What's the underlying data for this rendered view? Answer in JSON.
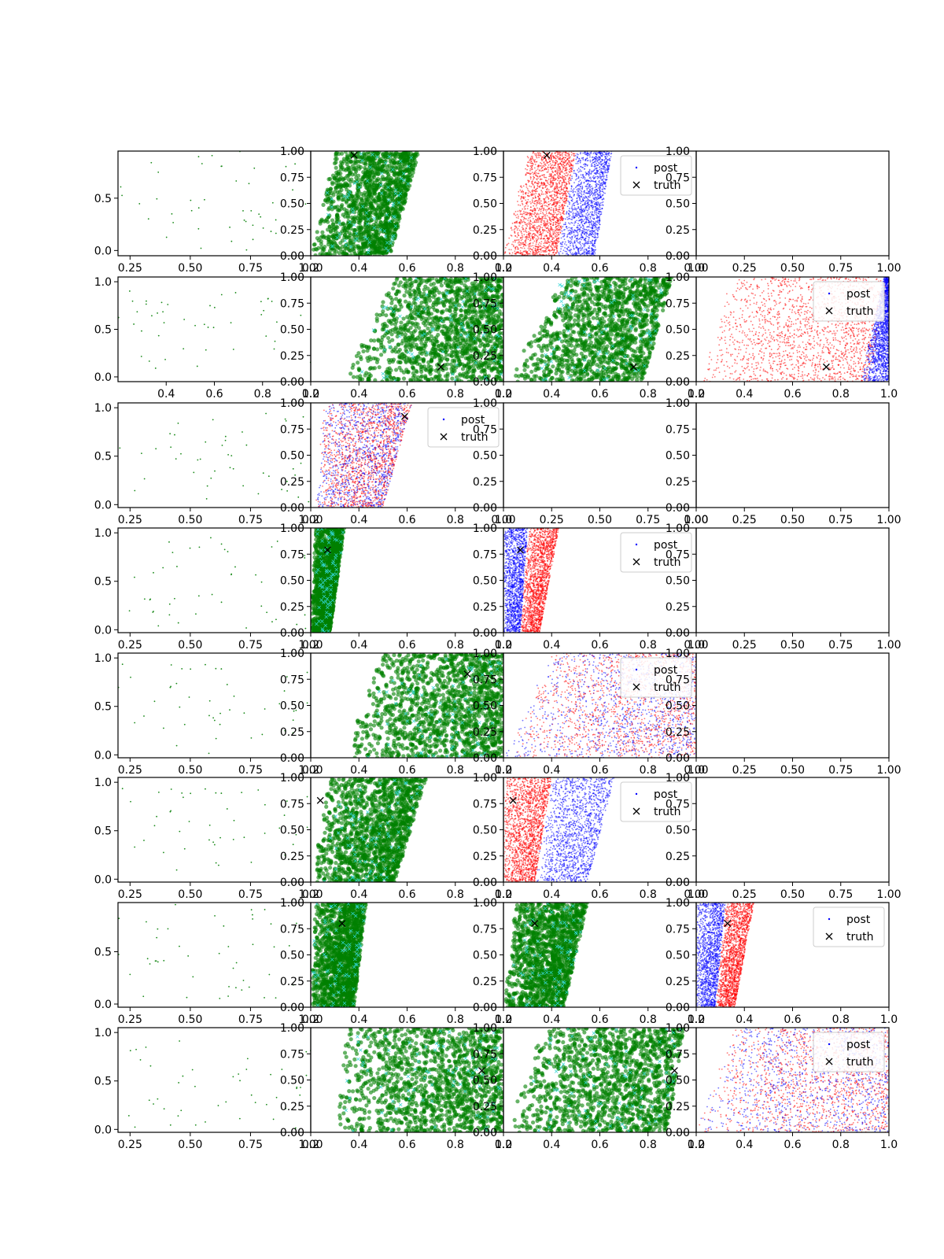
{
  "legend": {
    "post_label": "post",
    "truth_label": "truth"
  },
  "colors": {
    "scatter_green": "#1a8a1a",
    "posterior_green": "#008000",
    "posterior_red": "#ff0000",
    "posterior_blue": "#0000ff",
    "truth_marker": "#000000",
    "cyan_overlay": "#33d6d6"
  },
  "chart_data": [
    {
      "row": 0,
      "col": 0,
      "type": "scatter",
      "style": "sparse",
      "xlim": [
        0.2,
        1.0
      ],
      "ylim": [
        -0.05,
        0.95
      ],
      "xticks": [
        "0.25",
        "0.50",
        "0.75",
        "1.00"
      ],
      "yticks": [
        "0.0",
        "0.5"
      ],
      "yticks_values": [
        0.0,
        0.5
      ]
    },
    {
      "row": 0,
      "col": 1,
      "type": "scatter",
      "style": "green",
      "xlim": [
        0.2,
        1.0
      ],
      "ylim": [
        0,
        1
      ],
      "xticks": [
        "0.2",
        "0.4",
        "0.6",
        "0.8",
        "1.0"
      ],
      "yticks": [
        "0.00",
        "0.25",
        "0.50",
        "0.75",
        "1.00"
      ],
      "region": {
        "xmin_at_y0": 0.2,
        "xmax_at_y0": 0.53,
        "xmin_at_y1": 0.3,
        "xmax_at_y1": 0.65
      },
      "truth": [
        0.38,
        0.96
      ]
    },
    {
      "row": 0,
      "col": 2,
      "type": "scatter",
      "style": "redblue",
      "xlim": [
        0.2,
        1.0
      ],
      "ylim": [
        0,
        1
      ],
      "xticks": [
        "0.2",
        "0.4",
        "0.6",
        "0.8",
        "1.0"
      ],
      "yticks": [
        "0.00",
        "0.25",
        "0.50",
        "0.75",
        "1.00"
      ],
      "region": {
        "xmin_at_y0": 0.2,
        "xmax_at_y0": 0.42,
        "xmin_at_y1": 0.3,
        "xmax_at_y1": 0.5
      },
      "blue_region": {
        "xmin_at_y0": 0.42,
        "xmax_at_y0": 0.58,
        "xmin_at_y1": 0.5,
        "xmax_at_y1": 0.65
      },
      "truth": [
        0.38,
        0.96
      ],
      "legend": true
    },
    {
      "row": 0,
      "col": 3,
      "type": "empty",
      "xlim": [
        0,
        1
      ],
      "ylim": [
        0,
        1
      ],
      "xticks": [
        "0.00",
        "0.25",
        "0.50",
        "0.75",
        "1.00"
      ],
      "yticks": [
        "0.00",
        "0.25",
        "0.50",
        "0.75",
        "1.00"
      ]
    },
    {
      "row": 1,
      "col": 0,
      "type": "scatter",
      "style": "sparse",
      "xlim": [
        0.2,
        1.0
      ],
      "ylim": [
        -0.05,
        1.05
      ],
      "xticks": [
        "0.4",
        "0.6",
        "0.8",
        "1.0"
      ],
      "yticks": [
        "0.0",
        "0.5",
        "1.0"
      ],
      "yticks_values": [
        0.0,
        0.5,
        1.0
      ]
    },
    {
      "row": 1,
      "col": 1,
      "type": "scatter",
      "style": "green",
      "xlim": [
        0.2,
        1.0
      ],
      "ylim": [
        0,
        1
      ],
      "xticks": [
        "0.2",
        "0.4",
        "0.6",
        "0.8",
        "1.0"
      ],
      "yticks": [
        "0.00",
        "0.25",
        "0.50",
        "0.75",
        "1.00"
      ],
      "region": {
        "xmin_at_y0": 0.33,
        "xmax_at_y0": 1.0,
        "xmin_at_y1": 0.55,
        "xmax_at_y1": 1.0
      },
      "truth": [
        0.74,
        0.14
      ]
    },
    {
      "row": 1,
      "col": 2,
      "type": "scatter",
      "style": "green",
      "xlim": [
        0.2,
        1.0
      ],
      "ylim": [
        0,
        1
      ],
      "xticks": [
        "0.2",
        "0.4",
        "0.6",
        "0.8",
        "1.0"
      ],
      "yticks": [
        "0.00",
        "0.25",
        "0.50",
        "0.75",
        "1.00"
      ],
      "region": {
        "xmin_at_y0": 0.22,
        "xmax_at_y0": 0.78,
        "xmin_at_y1": 0.44,
        "xmax_at_y1": 0.9
      },
      "truth": [
        0.74,
        0.14
      ]
    },
    {
      "row": 1,
      "col": 3,
      "type": "scatter",
      "style": "redblue",
      "xlim": [
        0.2,
        1.0
      ],
      "ylim": [
        0,
        1
      ],
      "xticks": [
        "0.2",
        "0.4",
        "0.6",
        "0.8",
        "1.0"
      ],
      "yticks": [
        "0.00",
        "0.25",
        "0.50",
        "0.75",
        "1.00"
      ],
      "region": {
        "xmin_at_y0": 0.2,
        "xmax_at_y0": 0.92,
        "xmin_at_y1": 0.35,
        "xmax_at_y1": 1.0
      },
      "blue_region": {
        "xmin_at_y0": 0.88,
        "xmax_at_y0": 1.0,
        "xmin_at_y1": 0.98,
        "xmax_at_y1": 1.0
      },
      "truth": [
        0.74,
        0.14
      ],
      "legend": true
    },
    {
      "row": 2,
      "col": 0,
      "type": "scatter",
      "style": "sparse",
      "xlim": [
        0.2,
        1.0
      ],
      "ylim": [
        -0.03,
        1.05
      ],
      "xticks": [
        "0.25",
        "0.50",
        "0.75",
        "1.00"
      ],
      "yticks": [
        "0.0",
        "0.5",
        "1.0"
      ],
      "yticks_values": [
        0.0,
        0.5,
        1.0
      ]
    },
    {
      "row": 2,
      "col": 1,
      "type": "scatter",
      "style": "redblue_mixed",
      "xlim": [
        0.2,
        1.0
      ],
      "ylim": [
        0,
        1
      ],
      "xticks": [
        "0.2",
        "0.4",
        "0.6",
        "0.8",
        "1.0"
      ],
      "yticks": [
        "0.00",
        "0.25",
        "0.50",
        "0.75",
        "1.00"
      ],
      "region": {
        "xmin_at_y0": 0.22,
        "xmax_at_y0": 0.5,
        "xmin_at_y1": 0.25,
        "xmax_at_y1": 0.62
      },
      "truth": [
        0.59,
        0.87
      ],
      "legend": true
    },
    {
      "row": 2,
      "col": 2,
      "type": "empty",
      "xlim": [
        0,
        1
      ],
      "ylim": [
        0,
        1
      ],
      "xticks": [
        "0.00",
        "0.25",
        "0.50",
        "0.75",
        "1.00"
      ],
      "yticks": [
        "0.00",
        "0.25",
        "0.50",
        "0.75",
        "1.00"
      ]
    },
    {
      "row": 2,
      "col": 3,
      "type": "empty",
      "xlim": [
        0,
        1
      ],
      "ylim": [
        0,
        1
      ],
      "xticks": [
        "0.00",
        "0.25",
        "0.50",
        "0.75",
        "1.00"
      ],
      "yticks": [
        "0.00",
        "0.25",
        "0.50",
        "0.75",
        "1.00"
      ]
    },
    {
      "row": 3,
      "col": 0,
      "type": "scatter",
      "style": "sparse",
      "xlim": [
        0.2,
        1.0
      ],
      "ylim": [
        -0.03,
        1.05
      ],
      "xticks": [
        "0.25",
        "0.50",
        "0.75",
        "1.00"
      ],
      "yticks": [
        "0.0",
        "0.5",
        "1.0"
      ],
      "yticks_values": [
        0.0,
        0.5,
        1.0
      ]
    },
    {
      "row": 3,
      "col": 1,
      "type": "scatter",
      "style": "green",
      "xlim": [
        0.2,
        1.0
      ],
      "ylim": [
        0,
        1
      ],
      "xticks": [
        "0.2",
        "0.4",
        "0.6",
        "0.8",
        "1.0"
      ],
      "yticks": [
        "0.00",
        "0.25",
        "0.50",
        "0.75",
        "1.00"
      ],
      "region": {
        "xmin_at_y0": 0.2,
        "xmax_at_y0": 0.28,
        "xmin_at_y1": 0.22,
        "xmax_at_y1": 0.34
      },
      "truth": [
        0.27,
        0.79
      ]
    },
    {
      "row": 3,
      "col": 2,
      "type": "scatter",
      "style": "redblue",
      "xlim": [
        0.2,
        1.0
      ],
      "ylim": [
        0,
        1
      ],
      "xticks": [
        "0.2",
        "0.4",
        "0.6",
        "0.8",
        "1.0"
      ],
      "yticks": [
        "0.00",
        "0.25",
        "0.50",
        "0.75",
        "1.00"
      ],
      "region": {
        "xmin_at_y0": 0.27,
        "xmax_at_y0": 0.35,
        "xmin_at_y1": 0.3,
        "xmax_at_y1": 0.43
      },
      "blue_region": {
        "xmin_at_y0": 0.2,
        "xmax_at_y0": 0.27,
        "xmin_at_y1": 0.2,
        "xmax_at_y1": 0.3
      },
      "truth": [
        0.27,
        0.79
      ],
      "legend": true
    },
    {
      "row": 3,
      "col": 3,
      "type": "empty",
      "xlim": [
        0,
        1
      ],
      "ylim": [
        0,
        1
      ],
      "xticks": [
        "0.00",
        "0.25",
        "0.50",
        "0.75",
        "1.00"
      ],
      "yticks": [
        "0.00",
        "0.25",
        "0.50",
        "0.75",
        "1.00"
      ]
    },
    {
      "row": 4,
      "col": 0,
      "type": "scatter",
      "style": "sparse",
      "xlim": [
        0.2,
        1.0
      ],
      "ylim": [
        -0.03,
        1.05
      ],
      "xticks": [
        "0.25",
        "0.50",
        "0.75",
        "1.00"
      ],
      "yticks": [
        "0.0",
        "0.5",
        "1.0"
      ],
      "yticks_values": [
        0.0,
        0.5,
        1.0
      ]
    },
    {
      "row": 4,
      "col": 1,
      "type": "scatter",
      "style": "green",
      "xlim": [
        0.2,
        1.0
      ],
      "ylim": [
        0,
        1
      ],
      "xticks": [
        "0.2",
        "0.4",
        "0.6",
        "0.8",
        "1.0"
      ],
      "yticks": [
        "0.00",
        "0.25",
        "0.50",
        "0.75",
        "1.00"
      ],
      "region": {
        "xmin_at_y0": 0.33,
        "xmax_at_y0": 1.0,
        "xmin_at_y1": 0.5,
        "xmax_at_y1": 1.0
      },
      "truth": [
        0.85,
        0.8
      ]
    },
    {
      "row": 4,
      "col": 2,
      "type": "scatter",
      "style": "redblue_mixed",
      "xlim": [
        0.2,
        1.0
      ],
      "ylim": [
        0,
        1
      ],
      "xticks": [
        "0.2",
        "0.4",
        "0.6",
        "0.8",
        "1.0"
      ],
      "yticks": [
        "0.00",
        "0.25",
        "0.50",
        "0.75",
        "1.00"
      ],
      "region": {
        "xmin_at_y0": 0.2,
        "xmax_at_y0": 1.0,
        "xmin_at_y1": 0.4,
        "xmax_at_y1": 1.0
      },
      "legend": true
    },
    {
      "row": 4,
      "col": 3,
      "type": "empty",
      "xlim": [
        0,
        1
      ],
      "ylim": [
        0,
        1
      ],
      "xticks": [
        "0.00",
        "0.25",
        "0.50",
        "0.75",
        "1.00"
      ],
      "yticks": [
        "0.00",
        "0.25",
        "0.50",
        "0.75",
        "1.00"
      ]
    },
    {
      "row": 5,
      "col": 0,
      "type": "scatter",
      "style": "sparse",
      "xlim": [
        0.2,
        1.0
      ],
      "ylim": [
        -0.03,
        1.05
      ],
      "xticks": [
        "0.25",
        "0.50",
        "0.75",
        "1.00"
      ],
      "yticks": [
        "0.0",
        "0.5",
        "1.0"
      ],
      "yticks_values": [
        0.0,
        0.5,
        1.0
      ]
    },
    {
      "row": 5,
      "col": 1,
      "type": "scatter",
      "style": "green",
      "xlim": [
        0.2,
        1.0
      ],
      "ylim": [
        0,
        1
      ],
      "xticks": [
        "0.2",
        "0.4",
        "0.6",
        "0.8",
        "1.0"
      ],
      "yticks": [
        "0.00",
        "0.25",
        "0.50",
        "0.75",
        "1.00"
      ],
      "region": {
        "xmin_at_y0": 0.2,
        "xmax_at_y0": 0.55,
        "xmin_at_y1": 0.28,
        "xmax_at_y1": 0.68
      },
      "truth": [
        0.24,
        0.78
      ]
    },
    {
      "row": 5,
      "col": 2,
      "type": "scatter",
      "style": "redblue",
      "xlim": [
        0.2,
        1.0
      ],
      "ylim": [
        0,
        1
      ],
      "xticks": [
        "0.2",
        "0.4",
        "0.6",
        "0.8",
        "1.0"
      ],
      "yticks": [
        "0.00",
        "0.25",
        "0.50",
        "0.75",
        "1.00"
      ],
      "region": {
        "xmin_at_y0": 0.2,
        "xmax_at_y0": 0.33,
        "xmin_at_y1": 0.2,
        "xmax_at_y1": 0.4
      },
      "blue_region": {
        "xmin_at_y0": 0.33,
        "xmax_at_y0": 0.55,
        "xmin_at_y1": 0.4,
        "xmax_at_y1": 0.66
      },
      "truth": [
        0.24,
        0.78
      ],
      "legend": true
    },
    {
      "row": 5,
      "col": 3,
      "type": "empty",
      "xlim": [
        0,
        1
      ],
      "ylim": [
        0,
        1
      ],
      "xticks": [
        "0.00",
        "0.25",
        "0.50",
        "0.75",
        "1.00"
      ],
      "yticks": [
        "0.00",
        "0.25",
        "0.50",
        "0.75",
        "1.00"
      ]
    },
    {
      "row": 6,
      "col": 0,
      "type": "scatter",
      "style": "sparse",
      "xlim": [
        0.2,
        1.0
      ],
      "ylim": [
        -0.03,
        0.97
      ],
      "xticks": [
        "0.25",
        "0.50",
        "0.75",
        "1.00"
      ],
      "yticks": [
        "0.0",
        "0.5"
      ],
      "yticks_values": [
        0.0,
        0.5
      ]
    },
    {
      "row": 6,
      "col": 1,
      "type": "scatter",
      "style": "green",
      "xlim": [
        0.2,
        1.0
      ],
      "ylim": [
        0,
        1
      ],
      "xticks": [
        "0.2",
        "0.4",
        "0.6",
        "0.8",
        "1.0"
      ],
      "yticks": [
        "0.00",
        "0.25",
        "0.50",
        "0.75",
        "1.00"
      ],
      "region": {
        "xmin_at_y0": 0.2,
        "xmax_at_y0": 0.38,
        "xmin_at_y1": 0.22,
        "xmax_at_y1": 0.43
      },
      "truth": [
        0.33,
        0.8
      ]
    },
    {
      "row": 6,
      "col": 2,
      "type": "scatter",
      "style": "green",
      "xlim": [
        0.2,
        1.0
      ],
      "ylim": [
        0,
        1
      ],
      "xticks": [
        "0.2",
        "0.4",
        "0.6",
        "0.8",
        "1.0"
      ],
      "yticks": [
        "0.00",
        "0.25",
        "0.50",
        "0.75",
        "1.00"
      ],
      "region": {
        "xmin_at_y0": 0.2,
        "xmax_at_y0": 0.45,
        "xmin_at_y1": 0.25,
        "xmax_at_y1": 0.55
      },
      "truth": [
        0.33,
        0.8
      ]
    },
    {
      "row": 6,
      "col": 3,
      "type": "scatter",
      "style": "redblue",
      "xlim": [
        0.2,
        1.0
      ],
      "ylim": [
        0,
        1
      ],
      "xticks": [
        "0.2",
        "0.4",
        "0.6",
        "0.8",
        "1.0"
      ],
      "yticks": [
        "0.00",
        "0.25",
        "0.50",
        "0.75",
        "1.00"
      ],
      "region": {
        "xmin_at_y0": 0.28,
        "xmax_at_y0": 0.36,
        "xmin_at_y1": 0.32,
        "xmax_at_y1": 0.44
      },
      "blue_region": {
        "xmin_at_y0": 0.2,
        "xmax_at_y0": 0.28,
        "xmin_at_y1": 0.2,
        "xmax_at_y1": 0.32
      },
      "truth": [
        0.33,
        0.8
      ],
      "legend": true
    },
    {
      "row": 7,
      "col": 0,
      "type": "scatter",
      "style": "sparse",
      "xlim": [
        0.2,
        1.0
      ],
      "ylim": [
        -0.03,
        1.05
      ],
      "xticks": [
        "0.25",
        "0.50",
        "0.75",
        "1.00"
      ],
      "yticks": [
        "0.0",
        "0.5",
        "1.0"
      ],
      "yticks_values": [
        0.0,
        0.5,
        1.0
      ]
    },
    {
      "row": 7,
      "col": 1,
      "type": "scatter",
      "style": "green",
      "xlim": [
        0.2,
        1.0
      ],
      "ylim": [
        0,
        1
      ],
      "xticks": [
        "0.2",
        "0.4",
        "0.6",
        "0.8",
        "1.0"
      ],
      "yticks": [
        "0.00",
        "0.25",
        "0.50",
        "0.75",
        "1.00"
      ],
      "region": {
        "xmin_at_y0": 0.3,
        "xmax_at_y0": 1.0,
        "xmin_at_y1": 0.35,
        "xmax_at_y1": 1.0
      },
      "truth": [
        0.91,
        0.59
      ]
    },
    {
      "row": 7,
      "col": 2,
      "type": "scatter",
      "style": "green",
      "xlim": [
        0.2,
        1.0
      ],
      "ylim": [
        0,
        1
      ],
      "xticks": [
        "0.2",
        "0.4",
        "0.6",
        "0.8",
        "1.0"
      ],
      "yticks": [
        "0.00",
        "0.25",
        "0.50",
        "0.75",
        "1.00"
      ],
      "region": {
        "xmin_at_y0": 0.22,
        "xmax_at_y0": 0.88,
        "xmin_at_y1": 0.35,
        "xmax_at_y1": 0.95
      },
      "truth": [
        0.91,
        0.59
      ]
    },
    {
      "row": 7,
      "col": 3,
      "type": "scatter",
      "style": "redblue_mixed",
      "xlim": [
        0.2,
        1.0
      ],
      "ylim": [
        0,
        1
      ],
      "xticks": [
        "0.2",
        "0.4",
        "0.6",
        "0.8",
        "1.0"
      ],
      "yticks": [
        "0.00",
        "0.25",
        "0.50",
        "0.75",
        "1.00"
      ],
      "region": {
        "xmin_at_y0": 0.2,
        "xmax_at_y0": 1.0,
        "xmin_at_y1": 0.35,
        "xmax_at_y1": 1.0
      },
      "legend": true
    }
  ]
}
